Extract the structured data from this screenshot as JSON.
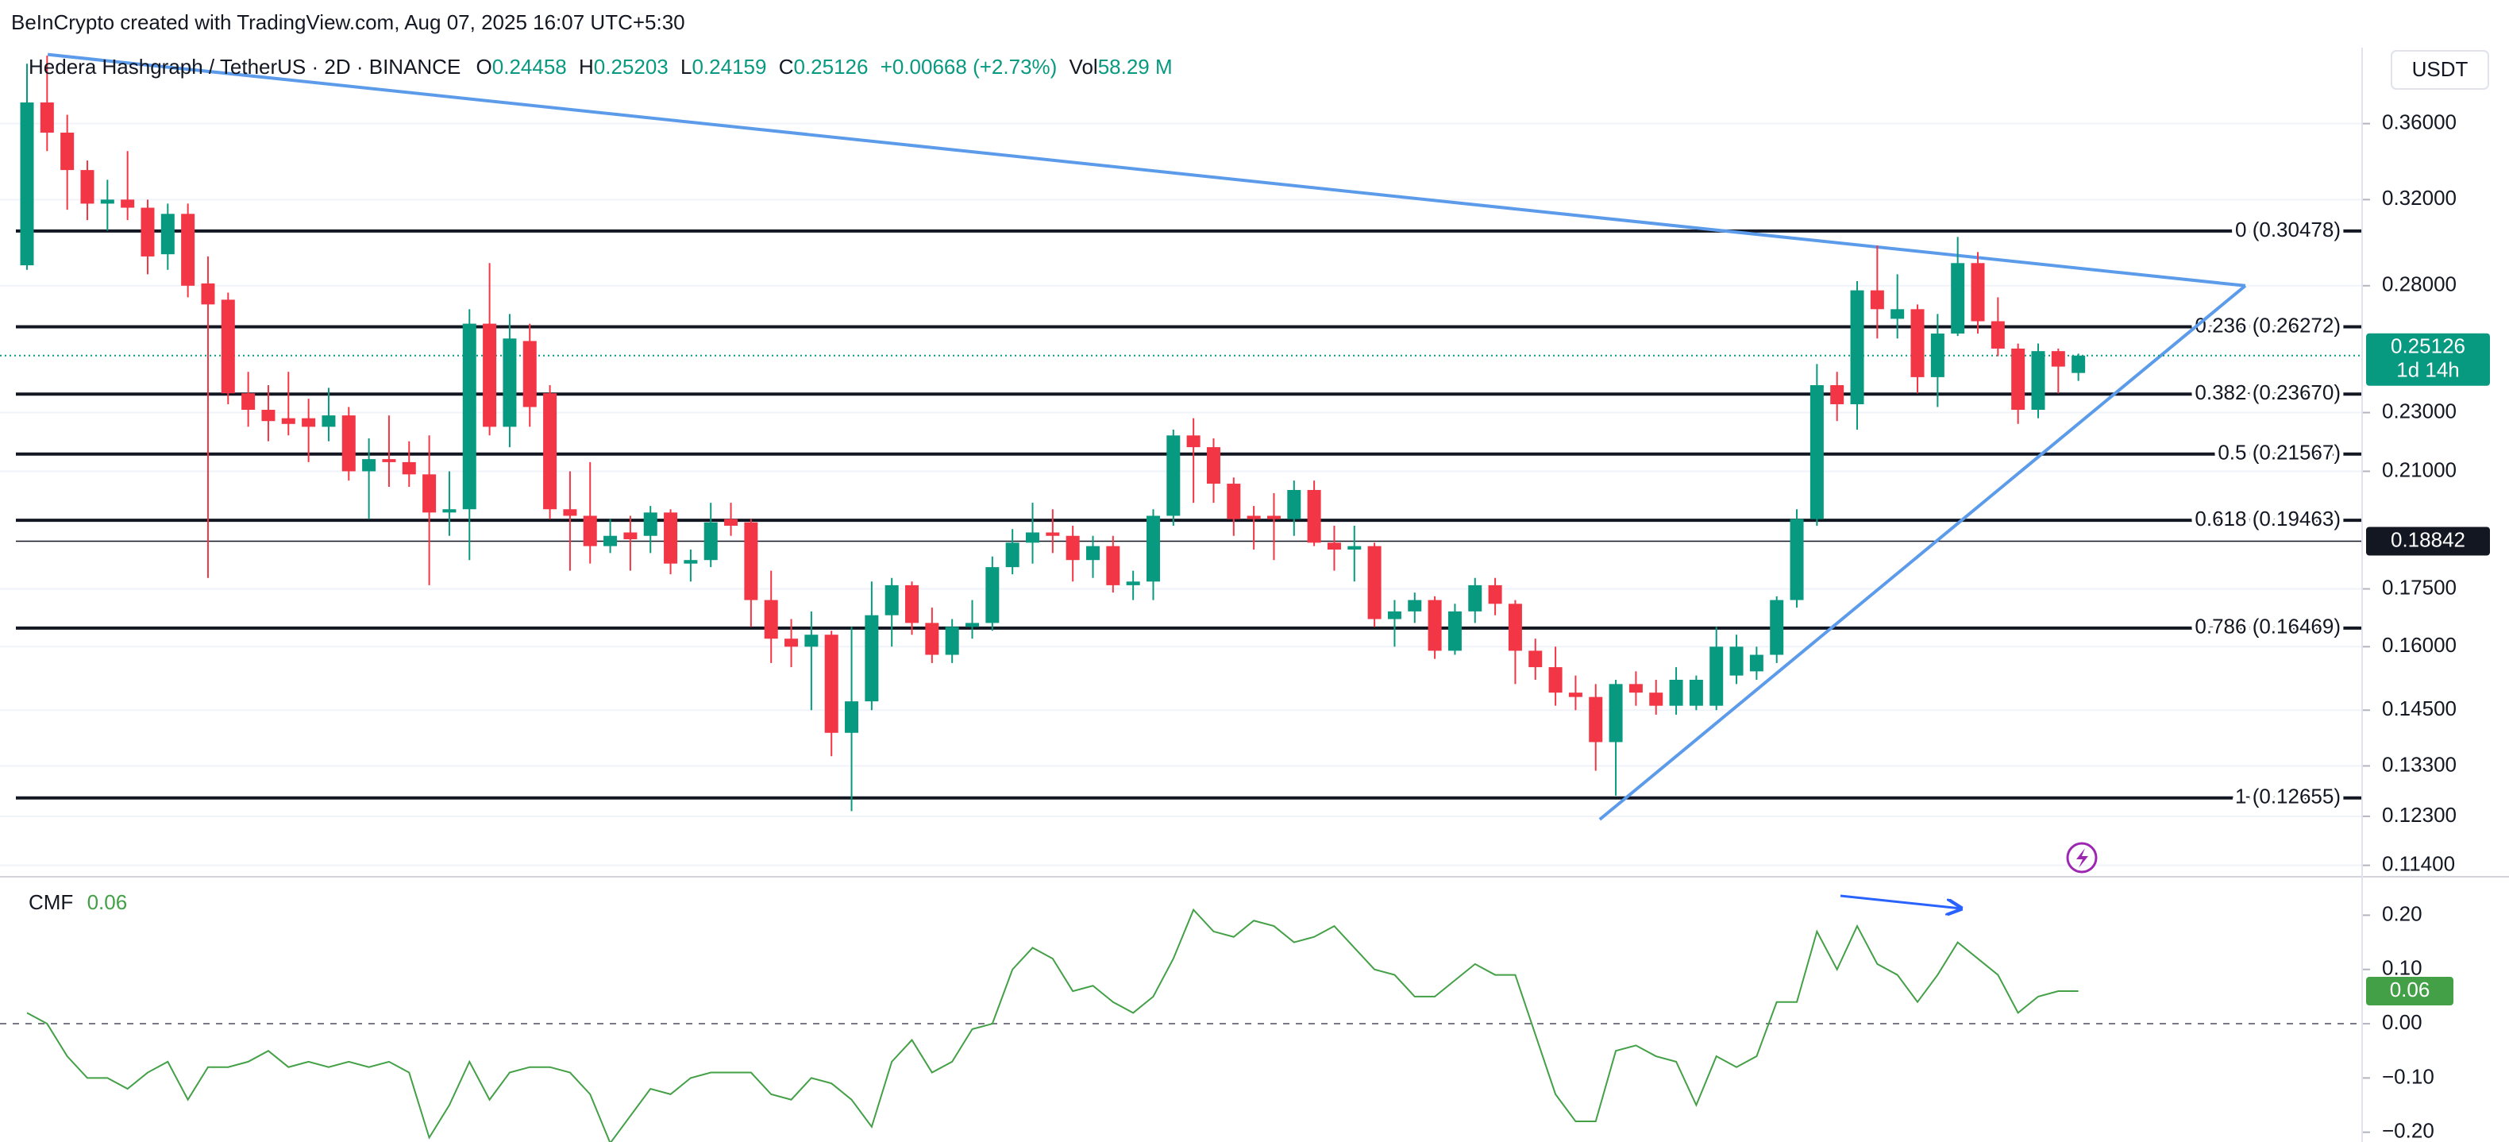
{
  "header": "BeInCrypto created with TradingView.com, Aug 07, 2025 16:07 UTC+5:30",
  "chart_data": [
    {
      "type": "candlestick",
      "title": "Hedera Hashgraph / TetherUS · 2D · BINANCE",
      "ohlc_labels": [
        "O",
        "H",
        "L",
        "C"
      ],
      "change": "+0.00668 (+2.73%)",
      "volume_label": "Vol",
      "volume": "58.29 M",
      "currency": "USDT",
      "countdown": "1d 14h",
      "up_color": "#089981",
      "down_color": "#f23645",
      "log_scale": true,
      "grid": true,
      "ylim": [
        0.112,
        0.405
      ],
      "yticks": [
        {
          "value": 0.36,
          "label": "0.36000"
        },
        {
          "value": 0.32,
          "label": "0.32000"
        },
        {
          "value": 0.28,
          "label": "0.28000"
        },
        {
          "value": 0.23,
          "label": "0.23000"
        },
        {
          "value": 0.21,
          "label": "0.21000"
        },
        {
          "value": 0.175,
          "label": "0.17500"
        },
        {
          "value": 0.16,
          "label": "0.16000"
        },
        {
          "value": 0.145,
          "label": "0.14500"
        },
        {
          "value": 0.133,
          "label": "0.13300"
        },
        {
          "value": 0.123,
          "label": "0.12300"
        },
        {
          "value": 0.114,
          "label": "0.11400"
        }
      ],
      "open": [
        0.289,
        0.372,
        0.355,
        0.335,
        0.318,
        0.32,
        0.316,
        0.294,
        0.313,
        0.281,
        0.274,
        0.237,
        0.231,
        0.228,
        0.228,
        0.225,
        0.229,
        0.21,
        0.214,
        0.213,
        0.209,
        0.197,
        0.198,
        0.264,
        0.225,
        0.257,
        0.237,
        0.198,
        0.196,
        0.187,
        0.191,
        0.19,
        0.197,
        0.182,
        0.183,
        0.195,
        0.194,
        0.172,
        0.162,
        0.16,
        0.163,
        0.14,
        0.147,
        0.168,
        0.176,
        0.166,
        0.158,
        0.165,
        0.166,
        0.181,
        0.188,
        0.191,
        0.19,
        0.183,
        0.187,
        0.176,
        0.177,
        0.196,
        0.222,
        0.218,
        0.206,
        0.196,
        0.196,
        0.195,
        0.204,
        0.188,
        0.186,
        0.187,
        0.167,
        0.169,
        0.172,
        0.159,
        0.169,
        0.176,
        0.171,
        0.159,
        0.155,
        0.149,
        0.148,
        0.138,
        0.151,
        0.149,
        0.146,
        0.146,
        0.146,
        0.153,
        0.154,
        0.158,
        0.172,
        0.195,
        0.24,
        0.233,
        0.278,
        0.266,
        0.27,
        0.243,
        0.26,
        0.29,
        0.265,
        0.254,
        0.231,
        0.253,
        0.24458
      ],
      "high": [
        0.395,
        0.4,
        0.365,
        0.34,
        0.33,
        0.345,
        0.32,
        0.318,
        0.318,
        0.293,
        0.277,
        0.245,
        0.24,
        0.245,
        0.235,
        0.239,
        0.232,
        0.221,
        0.229,
        0.22,
        0.222,
        0.21,
        0.27,
        0.29,
        0.268,
        0.264,
        0.24,
        0.21,
        0.213,
        0.195,
        0.196,
        0.199,
        0.198,
        0.186,
        0.2,
        0.2,
        0.195,
        0.18,
        0.167,
        0.169,
        0.164,
        0.165,
        0.177,
        0.178,
        0.177,
        0.17,
        0.167,
        0.172,
        0.184,
        0.192,
        0.2,
        0.198,
        0.193,
        0.19,
        0.19,
        0.18,
        0.198,
        0.224,
        0.228,
        0.221,
        0.208,
        0.199,
        0.203,
        0.207,
        0.207,
        0.193,
        0.193,
        0.188,
        0.172,
        0.174,
        0.173,
        0.171,
        0.178,
        0.178,
        0.172,
        0.162,
        0.16,
        0.153,
        0.151,
        0.152,
        0.154,
        0.152,
        0.155,
        0.153,
        0.165,
        0.163,
        0.16,
        0.173,
        0.198,
        0.248,
        0.245,
        0.282,
        0.298,
        0.285,
        0.272,
        0.268,
        0.302,
        0.295,
        0.275,
        0.256,
        0.256,
        0.254,
        0.25203
      ],
      "low": [
        0.287,
        0.345,
        0.315,
        0.31,
        0.305,
        0.31,
        0.285,
        0.287,
        0.275,
        0.178,
        0.233,
        0.225,
        0.22,
        0.222,
        0.213,
        0.22,
        0.207,
        0.195,
        0.205,
        0.205,
        0.176,
        0.19,
        0.183,
        0.222,
        0.218,
        0.225,
        0.195,
        0.18,
        0.182,
        0.185,
        0.18,
        0.185,
        0.179,
        0.177,
        0.181,
        0.19,
        0.165,
        0.156,
        0.155,
        0.145,
        0.135,
        0.124,
        0.145,
        0.16,
        0.163,
        0.156,
        0.156,
        0.162,
        0.164,
        0.179,
        0.182,
        0.185,
        0.177,
        0.178,
        0.174,
        0.172,
        0.172,
        0.193,
        0.2,
        0.2,
        0.19,
        0.186,
        0.183,
        0.19,
        0.187,
        0.18,
        0.177,
        0.165,
        0.16,
        0.166,
        0.157,
        0.158,
        0.166,
        0.168,
        0.151,
        0.152,
        0.146,
        0.145,
        0.132,
        0.127,
        0.146,
        0.144,
        0.144,
        0.145,
        0.145,
        0.151,
        0.152,
        0.156,
        0.17,
        0.193,
        0.227,
        0.224,
        0.258,
        0.258,
        0.237,
        0.232,
        0.259,
        0.26,
        0.251,
        0.226,
        0.228,
        0.237,
        0.24159
      ],
      "close": [
        0.372,
        0.355,
        0.335,
        0.318,
        0.32,
        0.316,
        0.293,
        0.313,
        0.28,
        0.272,
        0.237,
        0.231,
        0.227,
        0.226,
        0.225,
        0.229,
        0.21,
        0.214,
        0.213,
        0.209,
        0.197,
        0.198,
        0.264,
        0.225,
        0.258,
        0.232,
        0.198,
        0.196,
        0.187,
        0.19,
        0.189,
        0.197,
        0.182,
        0.183,
        0.194,
        0.193,
        0.172,
        0.162,
        0.16,
        0.163,
        0.14,
        0.147,
        0.168,
        0.176,
        0.166,
        0.158,
        0.165,
        0.166,
        0.181,
        0.188,
        0.191,
        0.19,
        0.183,
        0.187,
        0.176,
        0.177,
        0.196,
        0.222,
        0.218,
        0.206,
        0.195,
        0.195,
        0.195,
        0.204,
        0.188,
        0.186,
        0.187,
        0.167,
        0.169,
        0.172,
        0.159,
        0.169,
        0.176,
        0.171,
        0.159,
        0.155,
        0.149,
        0.148,
        0.138,
        0.151,
        0.149,
        0.146,
        0.152,
        0.152,
        0.16,
        0.16,
        0.158,
        0.172,
        0.195,
        0.24,
        0.233,
        0.278,
        0.27,
        0.27,
        0.243,
        0.26,
        0.29,
        0.265,
        0.254,
        0.231,
        0.253,
        0.247,
        0.25126
      ],
      "fib_levels": [
        {
          "label": "0 (0.30478)",
          "value": 0.30478
        },
        {
          "label": "0.236 (0.26272)",
          "value": 0.26272
        },
        {
          "label": "0.382 (0.23670)",
          "value": 0.2367
        },
        {
          "label": "0.5 (0.21567)",
          "value": 0.21567
        },
        {
          "label": "0.618 (0.19463)",
          "value": 0.19463
        },
        {
          "label": "0.786 (0.16469)",
          "value": 0.16469
        },
        {
          "label": "1 (0.12655)",
          "value": 0.12655
        }
      ],
      "price_line": 0.18842,
      "trendlines": [
        {
          "color": "#5b9bea",
          "x": [
            1.03,
            110.3
          ],
          "y": [
            0.4007,
            0.28
          ]
        },
        {
          "color": "#5b9bea",
          "x": [
            78.2,
            110.3
          ],
          "y": [
            0.1224,
            0.28
          ]
        }
      ]
    },
    {
      "type": "line",
      "title": "CMF",
      "color": "#43a047",
      "ylim": [
        -0.218,
        0.265
      ],
      "yticks": [
        {
          "value": 0.2,
          "label": "0.20"
        },
        {
          "value": 0.1,
          "label": "0.10"
        },
        {
          "value": 0,
          "label": "0.00"
        },
        {
          "value": -0.1,
          "label": "−0.10"
        },
        {
          "value": -0.2,
          "label": "−0.20"
        }
      ],
      "zero_line": true,
      "values": [
        0.02,
        0.0,
        -0.06,
        -0.1,
        -0.1,
        -0.12,
        -0.09,
        -0.07,
        -0.14,
        -0.08,
        -0.08,
        -0.07,
        -0.05,
        -0.08,
        -0.07,
        -0.08,
        -0.07,
        -0.08,
        -0.07,
        -0.09,
        -0.21,
        -0.15,
        -0.07,
        -0.14,
        -0.09,
        -0.08,
        -0.08,
        -0.09,
        -0.13,
        -0.22,
        -0.17,
        -0.12,
        -0.13,
        -0.1,
        -0.09,
        -0.09,
        -0.09,
        -0.13,
        -0.14,
        -0.1,
        -0.11,
        -0.14,
        -0.19,
        -0.07,
        -0.03,
        -0.09,
        -0.07,
        -0.01,
        0.0,
        0.1,
        0.14,
        0.12,
        0.06,
        0.07,
        0.04,
        0.02,
        0.05,
        0.12,
        0.21,
        0.17,
        0.16,
        0.19,
        0.18,
        0.15,
        0.16,
        0.18,
        0.14,
        0.1,
        0.09,
        0.05,
        0.05,
        0.08,
        0.11,
        0.09,
        0.09,
        -0.02,
        -0.13,
        -0.18,
        -0.18,
        -0.05,
        -0.04,
        -0.06,
        -0.07,
        -0.15,
        -0.06,
        -0.08,
        -0.06,
        0.04,
        0.04,
        0.17,
        0.1,
        0.18,
        0.11,
        0.09,
        0.04,
        0.09,
        0.15,
        0.12,
        0.09,
        0.02,
        0.05,
        0.06,
        0.06
      ]
    }
  ]
}
